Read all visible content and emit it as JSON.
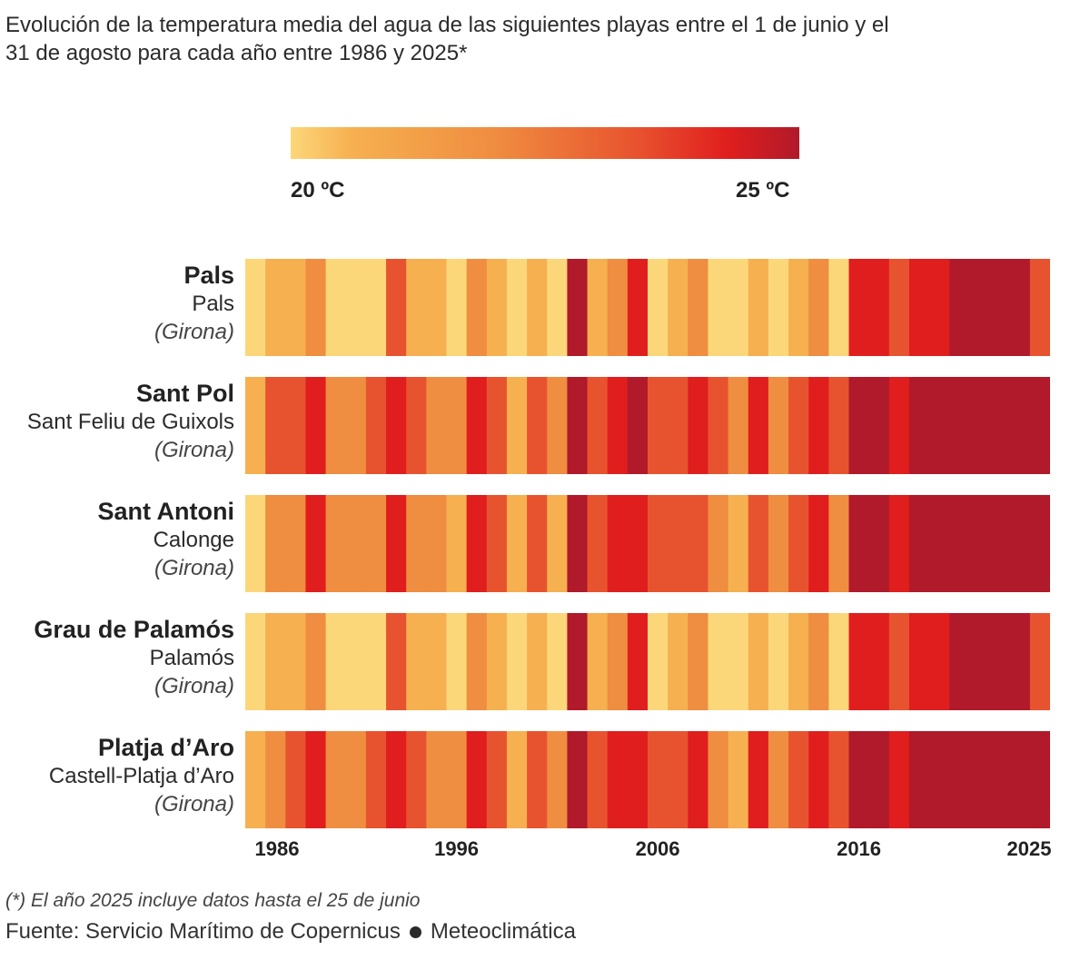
{
  "chart_data": {
    "type": "heatmap",
    "title": "Evolución de la temperatura media del agua de las siguientes playas entre el 1 de junio y el 31 de agosto para cada año entre 1986 y 2025*",
    "legend": {
      "min_label": "20 ºC",
      "max_label": "25 ºC",
      "min_value": 20,
      "max_value": 25,
      "colors": [
        "#fcd77a",
        "#f6b050",
        "#ef8d40",
        "#e8532f",
        "#e01e1e",
        "#b01a2a"
      ]
    },
    "color_levels_note": "values are color levels 1 (coolest, ~20 ºC) to 6 (warmest, ~25 ºC)",
    "years": [
      1986,
      1987,
      1988,
      1989,
      1990,
      1991,
      1992,
      1993,
      1994,
      1995,
      1996,
      1997,
      1998,
      1999,
      2000,
      2001,
      2002,
      2003,
      2004,
      2005,
      2006,
      2007,
      2008,
      2009,
      2010,
      2011,
      2012,
      2013,
      2014,
      2015,
      2016,
      2017,
      2018,
      2019,
      2020,
      2021,
      2022,
      2023,
      2024,
      2025
    ],
    "x_tick_labels": [
      "1986",
      "1996",
      "2006",
      "2016",
      "2025"
    ],
    "x_tick_years": [
      1986,
      1996,
      2006,
      2016,
      2025
    ],
    "series": [
      {
        "name": "Pals",
        "town": "Pals",
        "province": "(Girona)",
        "values": [
          1,
          2,
          2,
          3,
          1,
          1,
          1,
          4,
          2,
          2,
          1,
          3,
          2,
          1,
          2,
          1,
          6,
          2,
          3,
          5,
          1,
          2,
          3,
          1,
          1,
          2,
          1,
          2,
          3,
          1,
          5,
          5,
          4,
          5,
          5,
          6,
          6,
          6,
          6,
          4
        ]
      },
      {
        "name": "Sant Pol",
        "town": "Sant Feliu de Guixols",
        "province": "(Girona)",
        "values": [
          2,
          4,
          4,
          5,
          3,
          3,
          4,
          5,
          4,
          3,
          3,
          5,
          4,
          2,
          4,
          3,
          6,
          4,
          5,
          6,
          4,
          4,
          5,
          4,
          3,
          5,
          3,
          4,
          5,
          4,
          6,
          6,
          5,
          6,
          6,
          6,
          6,
          6,
          6,
          6
        ]
      },
      {
        "name": "Sant Antoni",
        "town": "Calonge",
        "province": "(Girona)",
        "values": [
          1,
          3,
          3,
          5,
          3,
          3,
          3,
          5,
          3,
          3,
          2,
          5,
          4,
          2,
          4,
          2,
          6,
          4,
          5,
          5,
          4,
          4,
          4,
          3,
          2,
          4,
          3,
          4,
          5,
          3,
          6,
          6,
          5,
          6,
          6,
          6,
          6,
          6,
          6,
          6
        ]
      },
      {
        "name": "Grau de Palamós",
        "town": "Palamós",
        "province": "(Girona)",
        "values": [
          1,
          2,
          2,
          3,
          1,
          1,
          1,
          4,
          2,
          2,
          1,
          3,
          2,
          1,
          2,
          1,
          6,
          2,
          3,
          5,
          1,
          2,
          3,
          1,
          1,
          2,
          1,
          2,
          3,
          1,
          5,
          5,
          4,
          5,
          5,
          6,
          6,
          6,
          6,
          4
        ]
      },
      {
        "name": "Platja d’Aro",
        "town": "Castell-Platja d’Aro",
        "province": "(Girona)",
        "values": [
          2,
          3,
          4,
          5,
          3,
          3,
          4,
          5,
          4,
          3,
          3,
          5,
          4,
          2,
          4,
          3,
          6,
          4,
          5,
          5,
          4,
          4,
          5,
          3,
          2,
          5,
          3,
          4,
          5,
          4,
          6,
          6,
          5,
          6,
          6,
          6,
          6,
          6,
          6,
          6
        ]
      }
    ],
    "note": "(*) El año 2025 incluye datos hasta el 25 de junio",
    "source": [
      "Fuente: Servicio Marítimo de Copernicus",
      "Meteoclimática"
    ]
  }
}
